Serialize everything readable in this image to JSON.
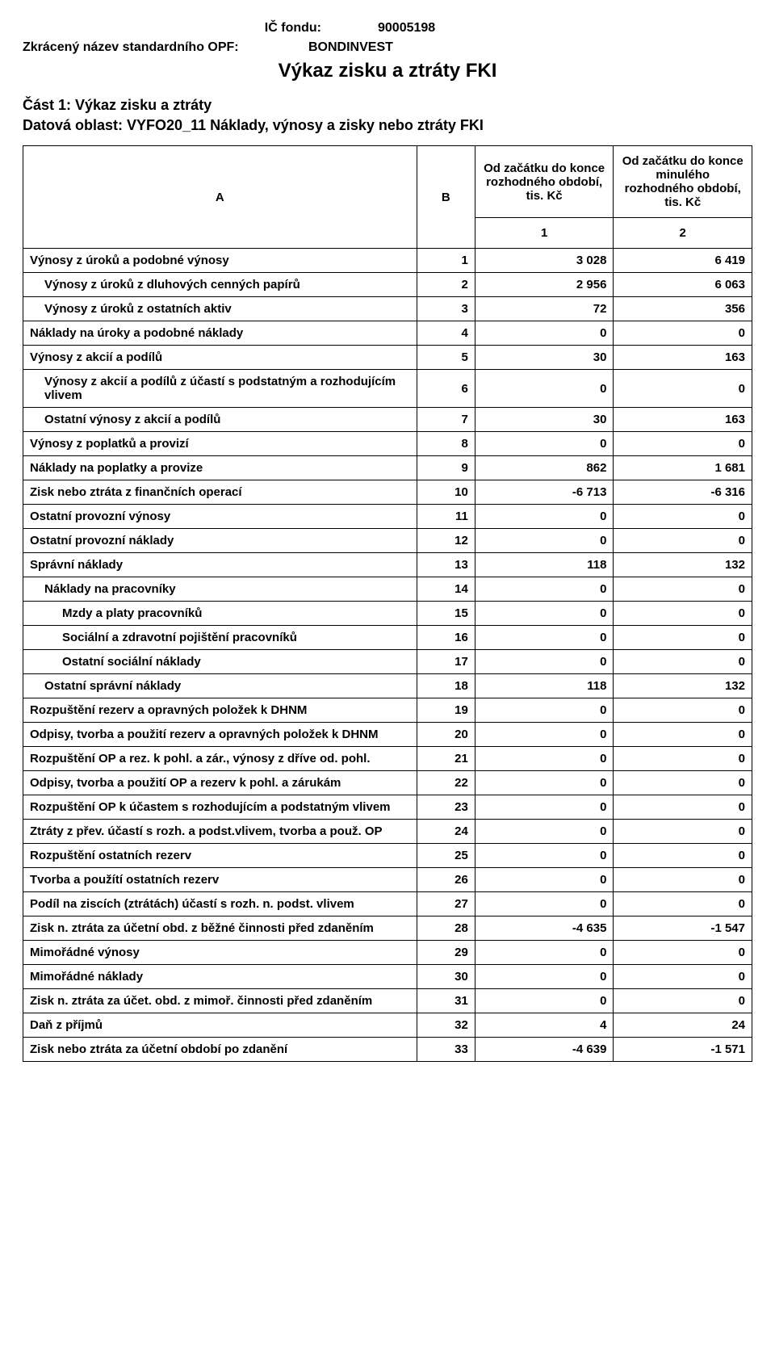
{
  "header": {
    "ic_label": "IČ fondu:",
    "ic_value": "90005198",
    "name_label": "Zkrácený název standardního OPF:",
    "name_value": "BONDINVEST",
    "title": "Výkaz zisku a ztráty FKI",
    "part_line": "Část 1: Výkaz zisku a ztráty",
    "area_line": "Datová oblast: VYFO20_11 Náklady, výnosy a zisky nebo ztráty FKI"
  },
  "table": {
    "col_headers": {
      "A": "A",
      "B": "B",
      "c1_top": "Od začátku do konce rozhodného období, tis. Kč",
      "c2_top": "Od začátku do konce minulého rozhodného období, tis. Kč",
      "c1": "1",
      "c2": "2"
    },
    "rows": [
      {
        "label": "Výnosy z úroků a podobné výnosy",
        "indent": 0,
        "b": 1,
        "v1": "3 028",
        "v2": "6 419"
      },
      {
        "label": "Výnosy z úroků z dluhových cenných papírů",
        "indent": 1,
        "b": 2,
        "v1": "2 956",
        "v2": "6 063"
      },
      {
        "label": "Výnosy z úroků z ostatních aktiv",
        "indent": 1,
        "b": 3,
        "v1": "72",
        "v2": "356"
      },
      {
        "label": "Náklady na úroky a podobné náklady",
        "indent": 0,
        "b": 4,
        "v1": "0",
        "v2": "0"
      },
      {
        "label": "Výnosy z akcií a podílů",
        "indent": 0,
        "b": 5,
        "v1": "30",
        "v2": "163"
      },
      {
        "label": "Výnosy z akcií a podílů z účastí s podstatným a rozhodujícím vlivem",
        "indent": 1,
        "b": 6,
        "v1": "0",
        "v2": "0"
      },
      {
        "label": "Ostatní výnosy z akcií a podílů",
        "indent": 1,
        "b": 7,
        "v1": "30",
        "v2": "163"
      },
      {
        "label": "Výnosy z poplatků a provizí",
        "indent": 0,
        "b": 8,
        "v1": "0",
        "v2": "0"
      },
      {
        "label": "Náklady na poplatky a provize",
        "indent": 0,
        "b": 9,
        "v1": "862",
        "v2": "1 681"
      },
      {
        "label": "Zisk nebo ztráta z finančních operací",
        "indent": 0,
        "b": 10,
        "v1": "-6 713",
        "v2": "-6 316"
      },
      {
        "label": "Ostatní provozní výnosy",
        "indent": 0,
        "b": 11,
        "v1": "0",
        "v2": "0"
      },
      {
        "label": "Ostatní provozní náklady",
        "indent": 0,
        "b": 12,
        "v1": "0",
        "v2": "0"
      },
      {
        "label": "Správní náklady",
        "indent": 0,
        "b": 13,
        "v1": "118",
        "v2": "132"
      },
      {
        "label": "Náklady na pracovníky",
        "indent": 1,
        "b": 14,
        "v1": "0",
        "v2": "0"
      },
      {
        "label": "Mzdy a platy pracovníků",
        "indent": 2,
        "b": 15,
        "v1": "0",
        "v2": "0"
      },
      {
        "label": "Sociální a zdravotní pojištění pracovníků",
        "indent": 2,
        "b": 16,
        "v1": "0",
        "v2": "0"
      },
      {
        "label": "Ostatní sociální náklady",
        "indent": 2,
        "b": 17,
        "v1": "0",
        "v2": "0"
      },
      {
        "label": "Ostatní správní náklady",
        "indent": 1,
        "b": 18,
        "v1": "118",
        "v2": "132"
      },
      {
        "label": "Rozpuštění rezerv a opravných položek k DHNM",
        "indent": 0,
        "b": 19,
        "v1": "0",
        "v2": "0"
      },
      {
        "label": "Odpisy, tvorba a použití rezerv a opravných položek k DHNM",
        "indent": 0,
        "b": 20,
        "v1": "0",
        "v2": "0"
      },
      {
        "label": "Rozpuštění OP a rez. k pohl. a zár., výnosy z dříve od. pohl.",
        "indent": 0,
        "b": 21,
        "v1": "0",
        "v2": "0"
      },
      {
        "label": "Odpisy, tvorba a použití OP a rezerv k pohl. a zárukám",
        "indent": 0,
        "b": 22,
        "v1": "0",
        "v2": "0"
      },
      {
        "label": "Rozpuštění OP k účastem s rozhodujícím a podstatným vlivem",
        "indent": 0,
        "b": 23,
        "v1": "0",
        "v2": "0"
      },
      {
        "label": "Ztráty z přev. účastí s rozh. a podst.vlivem, tvorba a použ. OP",
        "indent": 0,
        "b": 24,
        "v1": "0",
        "v2": "0"
      },
      {
        "label": "Rozpuštění ostatních rezerv",
        "indent": 0,
        "b": 25,
        "v1": "0",
        "v2": "0"
      },
      {
        "label": "Tvorba a použítí ostatních rezerv",
        "indent": 0,
        "b": 26,
        "v1": "0",
        "v2": "0"
      },
      {
        "label": "Podíl na ziscích (ztrátách) účastí s rozh. n. podst. vlivem",
        "indent": 0,
        "b": 27,
        "v1": "0",
        "v2": "0"
      },
      {
        "label": "Zisk n. ztráta za účetní obd. z běžné činnosti před zdaněním",
        "indent": 0,
        "b": 28,
        "v1": "-4 635",
        "v2": "-1 547"
      },
      {
        "label": "Mimořádné výnosy",
        "indent": 0,
        "b": 29,
        "v1": "0",
        "v2": "0"
      },
      {
        "label": "Mimořádné náklady",
        "indent": 0,
        "b": 30,
        "v1": "0",
        "v2": "0"
      },
      {
        "label": "Zisk n. ztráta za účet. obd. z mimoř. činnosti před zdaněním",
        "indent": 0,
        "b": 31,
        "v1": "0",
        "v2": "0"
      },
      {
        "label": "Daň z příjmů",
        "indent": 0,
        "b": 32,
        "v1": "4",
        "v2": "24"
      },
      {
        "label": "Zisk nebo ztráta za účetní období po zdanění",
        "indent": 0,
        "b": 33,
        "v1": "-4 639",
        "v2": "-1 571"
      }
    ]
  }
}
